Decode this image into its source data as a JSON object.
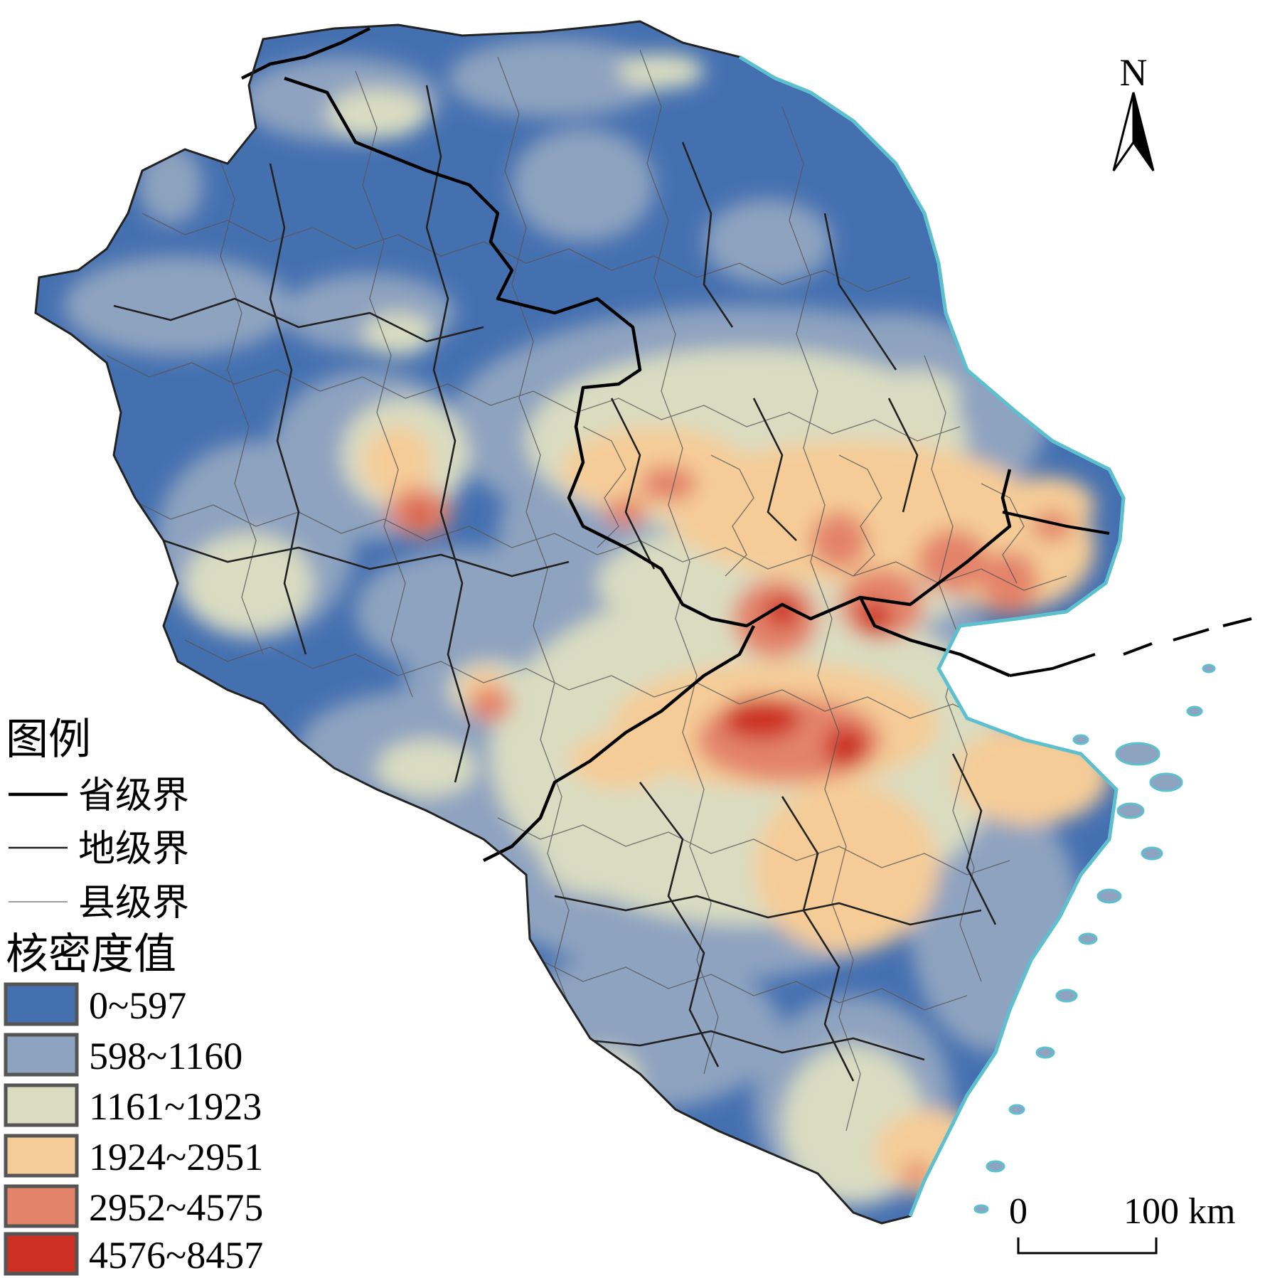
{
  "legend": {
    "title": "图例",
    "boundaries": [
      {
        "label": "省级界",
        "weight": "thick"
      },
      {
        "label": "地级界",
        "weight": "medium"
      },
      {
        "label": "县级界",
        "weight": "thin"
      }
    ],
    "density_title": "核密度值",
    "classes": [
      {
        "label": "0~597",
        "color": "#4570b0"
      },
      {
        "label": "598~1160",
        "color": "#8ea3c0"
      },
      {
        "label": "1161~1923",
        "color": "#d9dcc1"
      },
      {
        "label": "1924~2951",
        "color": "#f5cc97"
      },
      {
        "label": "2952~4575",
        "color": "#e3836a"
      },
      {
        "label": "4576~8457",
        "color": "#cc3022"
      }
    ]
  },
  "north_arrow": {
    "label": "N",
    "icon": "north-arrow-icon"
  },
  "scale_bar": {
    "start_label": "0",
    "end_label": "100 km"
  },
  "colors": {
    "coastline": "#5cc0cf",
    "boundary": "#1a1a1a"
  }
}
